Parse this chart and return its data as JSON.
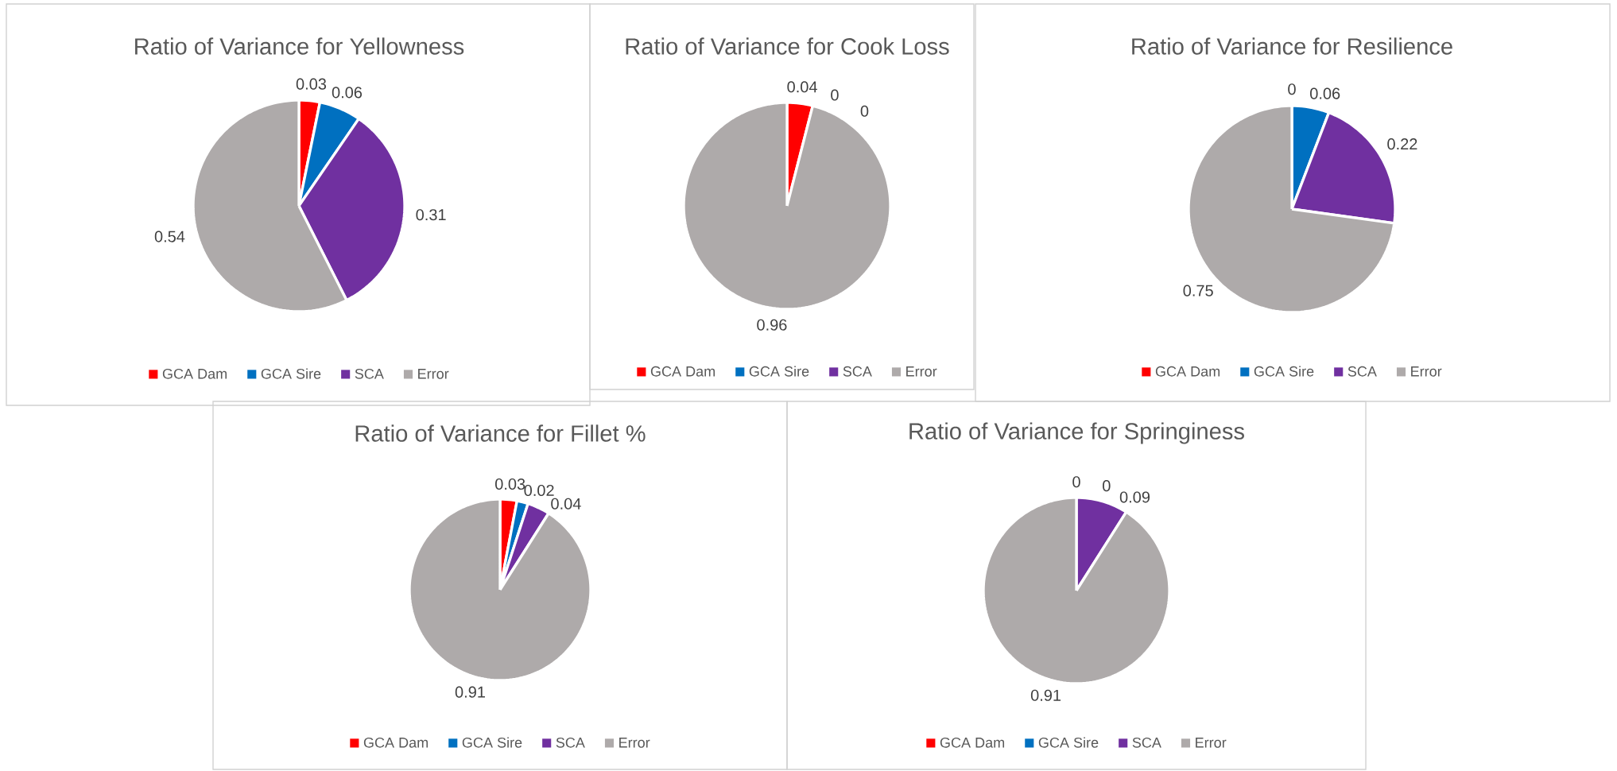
{
  "chart_data": [
    {
      "type": "pie",
      "title": "Ratio of Variance for Yellowness",
      "categories": [
        "GCA Dam",
        "GCA Sire",
        "SCA",
        "Error"
      ],
      "values": [
        0.03,
        0.06,
        0.31,
        0.54
      ],
      "value_labels": [
        "0.03",
        "0.06",
        "0.31",
        "0.54"
      ],
      "colors": [
        "#ff0000",
        "#0070c0",
        "#7030a0",
        "#aeaaaa"
      ],
      "legend": "bottom"
    },
    {
      "type": "pie",
      "title": "Ratio of Variance for Cook Loss",
      "categories": [
        "GCA Dam",
        "GCA Sire",
        "SCA",
        "Error"
      ],
      "values": [
        0.04,
        0,
        0,
        0.96
      ],
      "value_labels": [
        "0.04",
        "0",
        "0",
        "0.96"
      ],
      "colors": [
        "#ff0000",
        "#0070c0",
        "#7030a0",
        "#aeaaaa"
      ],
      "legend": "bottom"
    },
    {
      "type": "pie",
      "title": "Ratio of Variance for Resilience",
      "categories": [
        "GCA Dam",
        "GCA Sire",
        "SCA",
        "Error"
      ],
      "values": [
        0,
        0.06,
        0.22,
        0.75
      ],
      "value_labels": [
        "0",
        "0.06",
        "0.22",
        "0.75"
      ],
      "colors": [
        "#ff0000",
        "#0070c0",
        "#7030a0",
        "#aeaaaa"
      ],
      "legend": "bottom"
    },
    {
      "type": "pie",
      "title": "Ratio of Variance for Fillet %",
      "categories": [
        "GCA Dam",
        "GCA Sire",
        "SCA",
        "Error"
      ],
      "values": [
        0.03,
        0.02,
        0.04,
        0.91
      ],
      "value_labels": [
        "0.03",
        "0.02",
        "0.04",
        "0.91"
      ],
      "colors": [
        "#ff0000",
        "#0070c0",
        "#7030a0",
        "#aeaaaa"
      ],
      "legend": "bottom"
    },
    {
      "type": "pie",
      "title": "Ratio of Variance for Springiness",
      "categories": [
        "GCA Dam",
        "GCA Sire",
        "SCA",
        "Error"
      ],
      "values": [
        0,
        0,
        0.09,
        0.91
      ],
      "value_labels": [
        "0",
        "0",
        "0.09",
        "0.91"
      ],
      "colors": [
        "#ff0000",
        "#0070c0",
        "#7030a0",
        "#aeaaaa"
      ],
      "legend": "bottom"
    }
  ]
}
